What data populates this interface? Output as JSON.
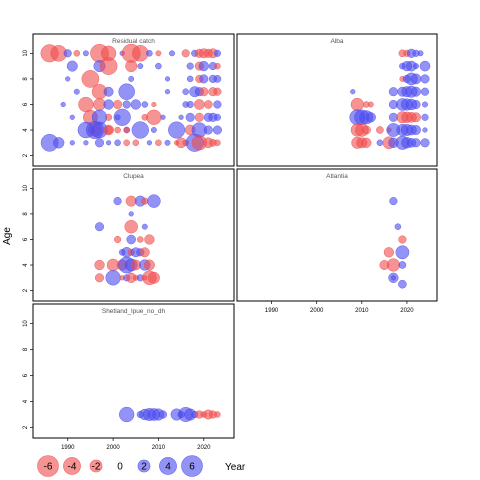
{
  "chart_data": {
    "type": "scatter",
    "xlabel": "Year",
    "ylabel": "Age",
    "xlim": [
      1983,
      2026
    ],
    "ylim": [
      1.5,
      11.2
    ],
    "x_ticks": [
      1990,
      2000,
      2010,
      2020
    ],
    "y_ticks": [
      2,
      4,
      6,
      8,
      10
    ],
    "colors": {
      "positive": "#4b4bf0",
      "negative": "#f04b4b"
    },
    "legend": {
      "placement": "bottom-left",
      "values": [
        -6,
        -4,
        -2,
        0,
        2,
        4,
        6
      ],
      "labels": [
        "-6",
        "-4",
        "-2",
        "0",
        "2",
        "4",
        "6"
      ]
    },
    "panels": [
      {
        "title": "Residual catch",
        "points": [
          [
            1986,
            10,
            -4.2
          ],
          [
            1988,
            10,
            -3.5
          ],
          [
            1990,
            10,
            0.8
          ],
          [
            1992,
            10,
            -0.5
          ],
          [
            1994,
            10,
            0.4
          ],
          [
            1997,
            10,
            -4.5
          ],
          [
            1999,
            10,
            -3
          ],
          [
            2002,
            10,
            0.3
          ],
          [
            2004,
            10,
            -4.6
          ],
          [
            2006,
            10,
            -3.5
          ],
          [
            2008,
            10,
            0.5
          ],
          [
            2010,
            10,
            -0.4
          ],
          [
            2013,
            10,
            0.4
          ],
          [
            2016,
            10,
            -0.8
          ],
          [
            2018,
            10,
            0.6
          ],
          [
            2019,
            10,
            -1
          ],
          [
            2020,
            10,
            -1.2
          ],
          [
            2021,
            10,
            -1
          ],
          [
            2022,
            10,
            -1.2
          ],
          [
            2023,
            10,
            0.6
          ],
          [
            1991,
            9,
            1.5
          ],
          [
            1997,
            9,
            1.8
          ],
          [
            1999,
            9,
            -4
          ],
          [
            2004,
            9,
            -1.8
          ],
          [
            2006,
            9,
            0.4
          ],
          [
            2010,
            9,
            0.5
          ],
          [
            2017,
            9,
            0.6
          ],
          [
            2019,
            9,
            -1
          ],
          [
            2020,
            9,
            1.3
          ],
          [
            2022,
            9,
            0.8
          ],
          [
            2023,
            9,
            -0.5
          ],
          [
            1990,
            8,
            0.3
          ],
          [
            1995,
            8,
            -4
          ],
          [
            2004,
            8,
            0.4
          ],
          [
            2012,
            8,
            0.3
          ],
          [
            2017,
            8,
            0.5
          ],
          [
            2019,
            8,
            -0.8
          ],
          [
            2020,
            8,
            1
          ],
          [
            2022,
            8,
            0.8
          ],
          [
            2023,
            8,
            0.7
          ],
          [
            1992,
            7,
            0.4
          ],
          [
            1997,
            7,
            -3
          ],
          [
            1999,
            7,
            1.2
          ],
          [
            2003,
            7,
            3.5
          ],
          [
            2012,
            7,
            0.3
          ],
          [
            2016,
            7,
            0.5
          ],
          [
            2018,
            7,
            1.5
          ],
          [
            2019,
            7,
            1
          ],
          [
            2020,
            7,
            -1
          ],
          [
            2022,
            7,
            -1
          ],
          [
            2023,
            7,
            -0.8
          ],
          [
            1989,
            6,
            0.3
          ],
          [
            1994,
            6,
            -3
          ],
          [
            1997,
            6,
            -2
          ],
          [
            1999,
            6,
            1.3
          ],
          [
            2001,
            6,
            -1
          ],
          [
            2003,
            6,
            0.8
          ],
          [
            2005,
            6,
            1.3
          ],
          [
            2007,
            6,
            0.5
          ],
          [
            2009,
            6,
            -0.3
          ],
          [
            2016,
            6,
            0.5
          ],
          [
            2017,
            6,
            0.6
          ],
          [
            2019,
            6,
            -1.4
          ],
          [
            2021,
            6,
            -0.9
          ],
          [
            2023,
            6,
            0.8
          ],
          [
            1991,
            5,
            0.3
          ],
          [
            1995,
            5,
            -2.8
          ],
          [
            1997,
            5,
            3
          ],
          [
            1999,
            5,
            -0.6
          ],
          [
            2001,
            5,
            0.4
          ],
          [
            2002,
            5,
            3.8
          ],
          [
            2007,
            5,
            -0.5
          ],
          [
            2009,
            5,
            -3
          ],
          [
            2011,
            5,
            0.3
          ],
          [
            2015,
            5,
            0.3
          ],
          [
            2017,
            5,
            1
          ],
          [
            2019,
            5,
            -1
          ],
          [
            2021,
            5,
            1
          ],
          [
            2022,
            5,
            1
          ],
          [
            2023,
            5,
            0.6
          ],
          [
            1996,
            4,
            -2.3
          ],
          [
            1999,
            4,
            -0.9
          ],
          [
            2003,
            4,
            0.5
          ],
          [
            1994,
            4,
            3.5
          ],
          [
            1996,
            4,
            4.2
          ],
          [
            1997,
            4,
            3.5
          ],
          [
            1999,
            4,
            -1.4
          ],
          [
            2001,
            4,
            -0.5
          ],
          [
            2003,
            4,
            -0.5
          ],
          [
            2006,
            4,
            3.8
          ],
          [
            2009,
            4,
            0.4
          ],
          [
            2014,
            4,
            3.7
          ],
          [
            2017,
            4,
            -1.4
          ],
          [
            2019,
            4,
            3
          ],
          [
            2021,
            4,
            1
          ],
          [
            2023,
            4,
            1
          ],
          [
            1986,
            3,
            4
          ],
          [
            1988,
            3,
            1.6
          ],
          [
            1991,
            3,
            0.3
          ],
          [
            1994,
            3,
            0.3
          ],
          [
            1997,
            3,
            1
          ],
          [
            1999,
            3,
            0.3
          ],
          [
            2001,
            3,
            0.5
          ],
          [
            2003,
            3,
            -0.5
          ],
          [
            2005,
            3,
            -0.5
          ],
          [
            2008,
            3,
            0.3
          ],
          [
            2010,
            3,
            -0.5
          ],
          [
            2012,
            3,
            0.4
          ],
          [
            2014,
            3,
            -0.3
          ],
          [
            2015,
            3,
            -1.4
          ],
          [
            2016,
            3,
            -0.5
          ],
          [
            2018,
            3,
            4.2
          ],
          [
            2019,
            3,
            -3
          ],
          [
            2021,
            3,
            -1.4
          ],
          [
            2022,
            3,
            -0.7
          ],
          [
            2023,
            3,
            -0.5
          ]
        ]
      },
      {
        "title": "Alba",
        "points": [
          [
            2019,
            10,
            -0.7
          ],
          [
            2020,
            10,
            -0.6
          ],
          [
            2021,
            10,
            1
          ],
          [
            2022,
            10,
            0.6
          ],
          [
            2023,
            10,
            0.4
          ],
          [
            2019,
            9,
            0.5
          ],
          [
            2020,
            9,
            1.3
          ],
          [
            2021,
            9,
            1.4
          ],
          [
            2022,
            9,
            0.4
          ],
          [
            2024,
            9,
            1.4
          ],
          [
            2019,
            8,
            -0.4
          ],
          [
            2020,
            8,
            0.8
          ],
          [
            2021,
            8,
            2
          ],
          [
            2022,
            8,
            1.4
          ],
          [
            2024,
            8,
            1
          ],
          [
            2008,
            7,
            0.3
          ],
          [
            2017,
            7,
            1
          ],
          [
            2019,
            7,
            1.2
          ],
          [
            2020,
            7,
            1.5
          ],
          [
            2021,
            7,
            1.8
          ],
          [
            2022,
            7,
            1.2
          ],
          [
            2024,
            7,
            0.8
          ],
          [
            2009,
            6,
            -2.2
          ],
          [
            2011,
            6,
            -0.5
          ],
          [
            2012,
            6,
            -0.4
          ],
          [
            2017,
            6,
            1
          ],
          [
            2019,
            6,
            2
          ],
          [
            2020,
            6,
            1.8
          ],
          [
            2021,
            6,
            1.6
          ],
          [
            2022,
            6,
            1
          ],
          [
            2024,
            6,
            0.4
          ],
          [
            2009,
            5,
            3.2
          ],
          [
            2010,
            5,
            3
          ],
          [
            2011,
            5,
            2.5
          ],
          [
            2012,
            5,
            1.3
          ],
          [
            2017,
            5,
            1
          ],
          [
            2019,
            5,
            -1.8
          ],
          [
            2020,
            5,
            -1.6
          ],
          [
            2021,
            5,
            -1.4
          ],
          [
            2022,
            5,
            -1.2
          ],
          [
            2024,
            5,
            0.6
          ],
          [
            2009,
            4,
            -2.2
          ],
          [
            2010,
            4,
            -2.3
          ],
          [
            2011,
            4,
            -1
          ],
          [
            2014,
            4,
            -0.7
          ],
          [
            2016,
            4,
            -0.3
          ],
          [
            2017,
            4,
            2.4
          ],
          [
            2019,
            4,
            1.8
          ],
          [
            2020,
            4,
            1.8
          ],
          [
            2021,
            4,
            1.4
          ],
          [
            2022,
            4,
            1.2
          ],
          [
            2024,
            4,
            0.3
          ],
          [
            2009,
            3,
            -1.8
          ],
          [
            2010,
            3,
            -1.5
          ],
          [
            2011,
            3,
            -1.3
          ],
          [
            2014,
            3,
            0.5
          ],
          [
            2016,
            3,
            -2
          ],
          [
            2017,
            3,
            1.3
          ],
          [
            2019,
            3,
            2.5
          ],
          [
            2020,
            3,
            1.6
          ],
          [
            2021,
            3,
            1.1
          ],
          [
            2022,
            3,
            1
          ],
          [
            2024,
            3,
            1
          ]
        ]
      },
      {
        "title": "Clupea",
        "points": [
          [
            2001,
            9,
            0.8
          ],
          [
            2004,
            9,
            -1.5
          ],
          [
            2006,
            9,
            1.5
          ],
          [
            2007,
            9,
            -0.6
          ],
          [
            2009,
            9,
            2.3
          ],
          [
            2004,
            8,
            0.3
          ],
          [
            1997,
            7,
            1
          ],
          [
            2004,
            7,
            -2.3
          ],
          [
            2007,
            7,
            0.4
          ],
          [
            2001,
            6,
            -0.6
          ],
          [
            2004,
            6,
            1.1
          ],
          [
            2006,
            6,
            -0.5
          ],
          [
            2008,
            6,
            -1.3
          ],
          [
            2002,
            5,
            0.5
          ],
          [
            2003,
            5,
            1.4
          ],
          [
            2004,
            5,
            -0.6
          ],
          [
            2005,
            5,
            1.2
          ],
          [
            2006,
            5,
            0.8
          ],
          [
            2007,
            5,
            -1.2
          ],
          [
            1997,
            4,
            -1.3
          ],
          [
            2000,
            4,
            -2
          ],
          [
            2002,
            4,
            -1.5
          ],
          [
            2003,
            4,
            3.6
          ],
          [
            2004,
            4,
            2.1
          ],
          [
            2005,
            4,
            -1.4
          ],
          [
            2007,
            4,
            1.6
          ],
          [
            2008,
            4,
            -1.5
          ],
          [
            1997,
            3,
            -1
          ],
          [
            2000,
            3,
            3
          ],
          [
            2002,
            3,
            -0.3
          ],
          [
            2003,
            3,
            0.6
          ],
          [
            2004,
            3,
            -1.3
          ],
          [
            2005,
            3,
            -0.4
          ],
          [
            2006,
            3,
            0.6
          ],
          [
            2007,
            3,
            -0.3
          ],
          [
            2008,
            3,
            -2.7
          ],
          [
            2009,
            3,
            -1.8
          ]
        ]
      },
      {
        "title": "Atlantia",
        "points": [
          [
            2017,
            9,
            0.8
          ],
          [
            2018,
            7,
            0.5
          ],
          [
            2019,
            6,
            -0.8
          ],
          [
            2016,
            5,
            -1.3
          ],
          [
            2019,
            5,
            2.4
          ],
          [
            2015,
            4,
            -1.2
          ],
          [
            2017,
            4,
            -2.2
          ],
          [
            2019,
            4,
            0.7
          ],
          [
            2017,
            3,
            1.3
          ],
          [
            2019,
            2.5,
            0.9
          ],
          [
            2017,
            3,
            0.3
          ]
        ]
      },
      {
        "title": "Shetland_lpue_no_dh",
        "points": [
          [
            2003,
            3,
            3
          ],
          [
            2006,
            3,
            0.6
          ],
          [
            2007,
            3,
            1.6
          ],
          [
            2008,
            3,
            2.1
          ],
          [
            2009,
            3,
            2
          ],
          [
            2010,
            3,
            1.8
          ],
          [
            2011,
            3,
            0.8
          ],
          [
            2014,
            3,
            1.8
          ],
          [
            2015,
            3,
            0.6
          ],
          [
            2016,
            3,
            2.9
          ],
          [
            2017,
            3,
            1.8
          ],
          [
            2018,
            3,
            0.6
          ],
          [
            2019,
            3,
            -0.8
          ],
          [
            2020,
            3,
            -0.5
          ],
          [
            2021,
            3,
            -1.2
          ],
          [
            2022,
            3,
            -0.8
          ],
          [
            2023,
            3,
            -0.5
          ]
        ]
      }
    ]
  }
}
